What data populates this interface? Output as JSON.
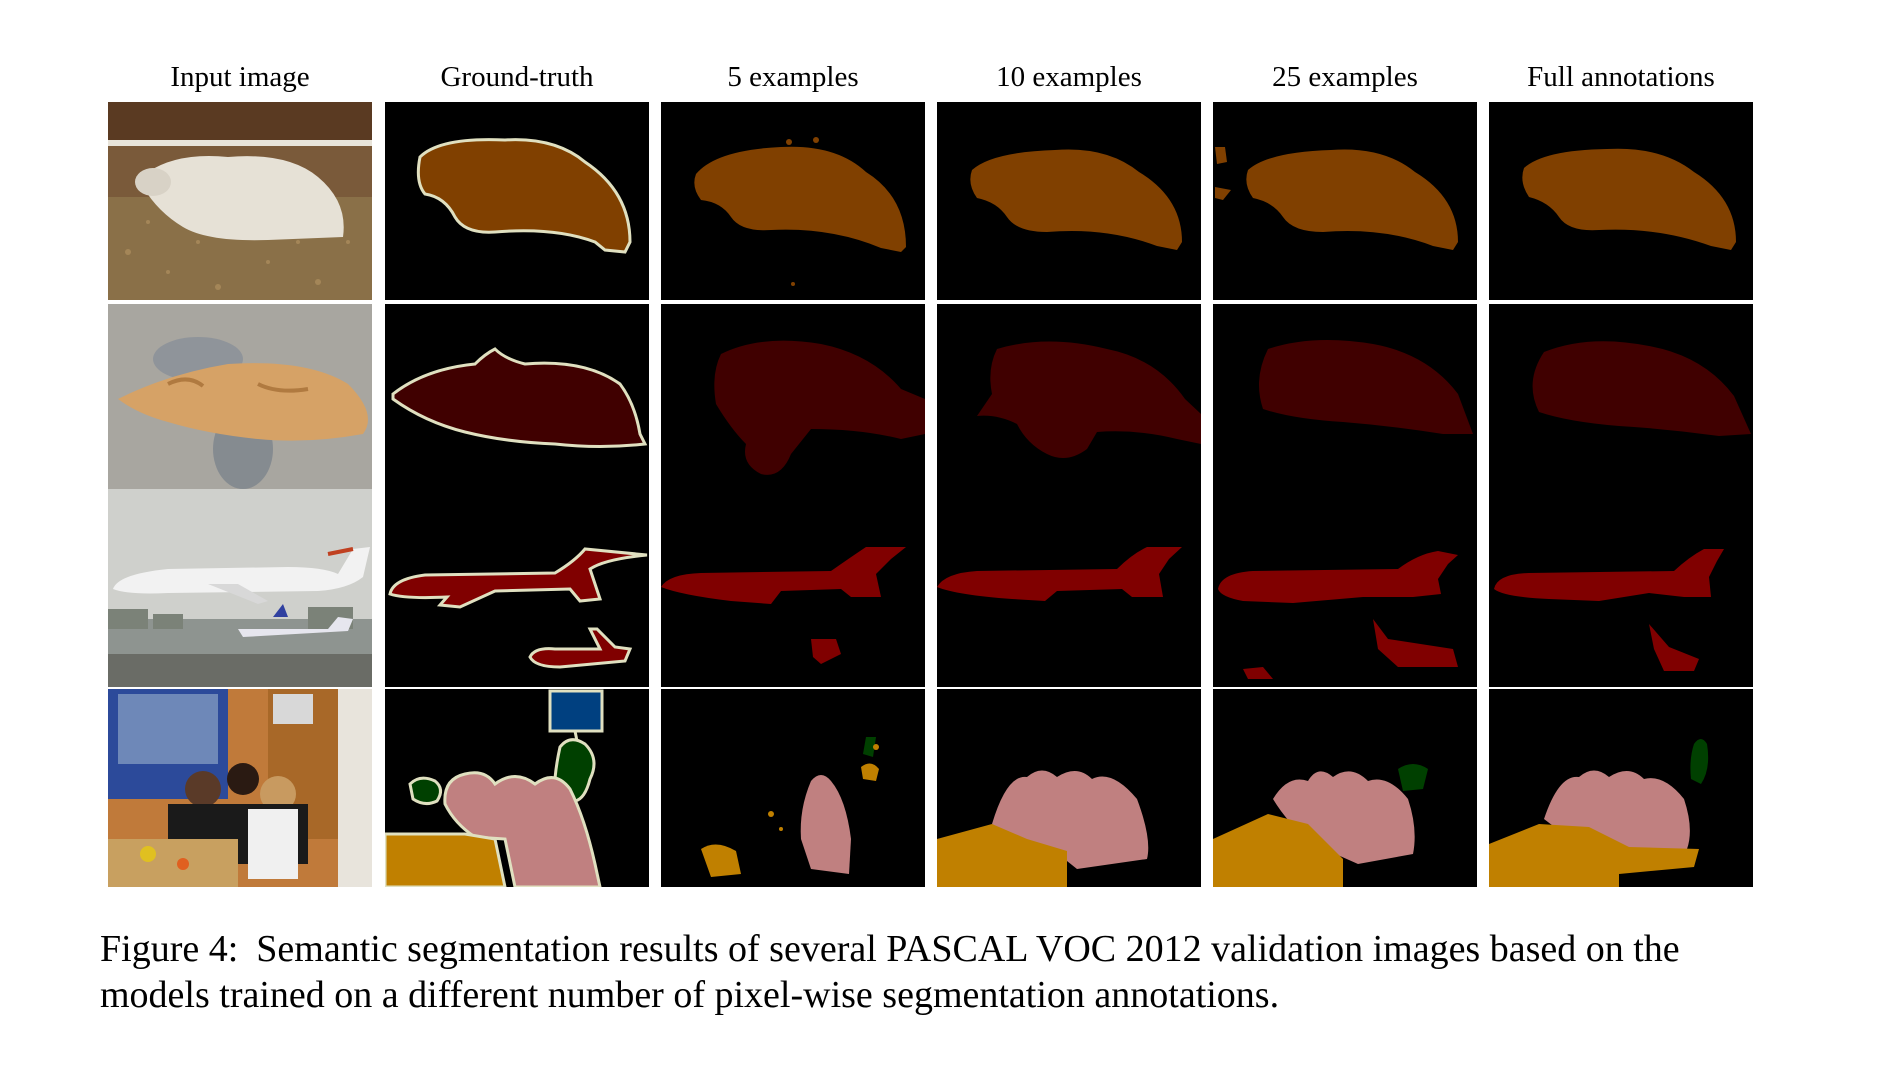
{
  "figure": {
    "column_headers": [
      "Input image",
      "Ground-truth",
      "5 examples",
      "10 examples",
      "25 examples",
      "Full annotations"
    ],
    "caption_label": "Figure 4:",
    "caption_text": "Semantic segmentation results of several PASCAL VOC 2012 validation images based on the models trained on a different number of pixel-wise segmentation annotations."
  },
  "rows": [
    {
      "subject": "sheep",
      "mask_color": "#804000"
    },
    {
      "subject": "cat",
      "mask_color": "#400000"
    },
    {
      "subject": "aeroplane",
      "mask_color": "#800000"
    },
    {
      "subject": "people-dining-table-plant",
      "mask_colors": {
        "person": "#c08080",
        "dining_table": "#c08000",
        "potted_plant": "#004000",
        "tv_monitor": "#004080"
      }
    }
  ],
  "colors": {
    "background": "#000000",
    "boundary": "#e0e0c0"
  }
}
